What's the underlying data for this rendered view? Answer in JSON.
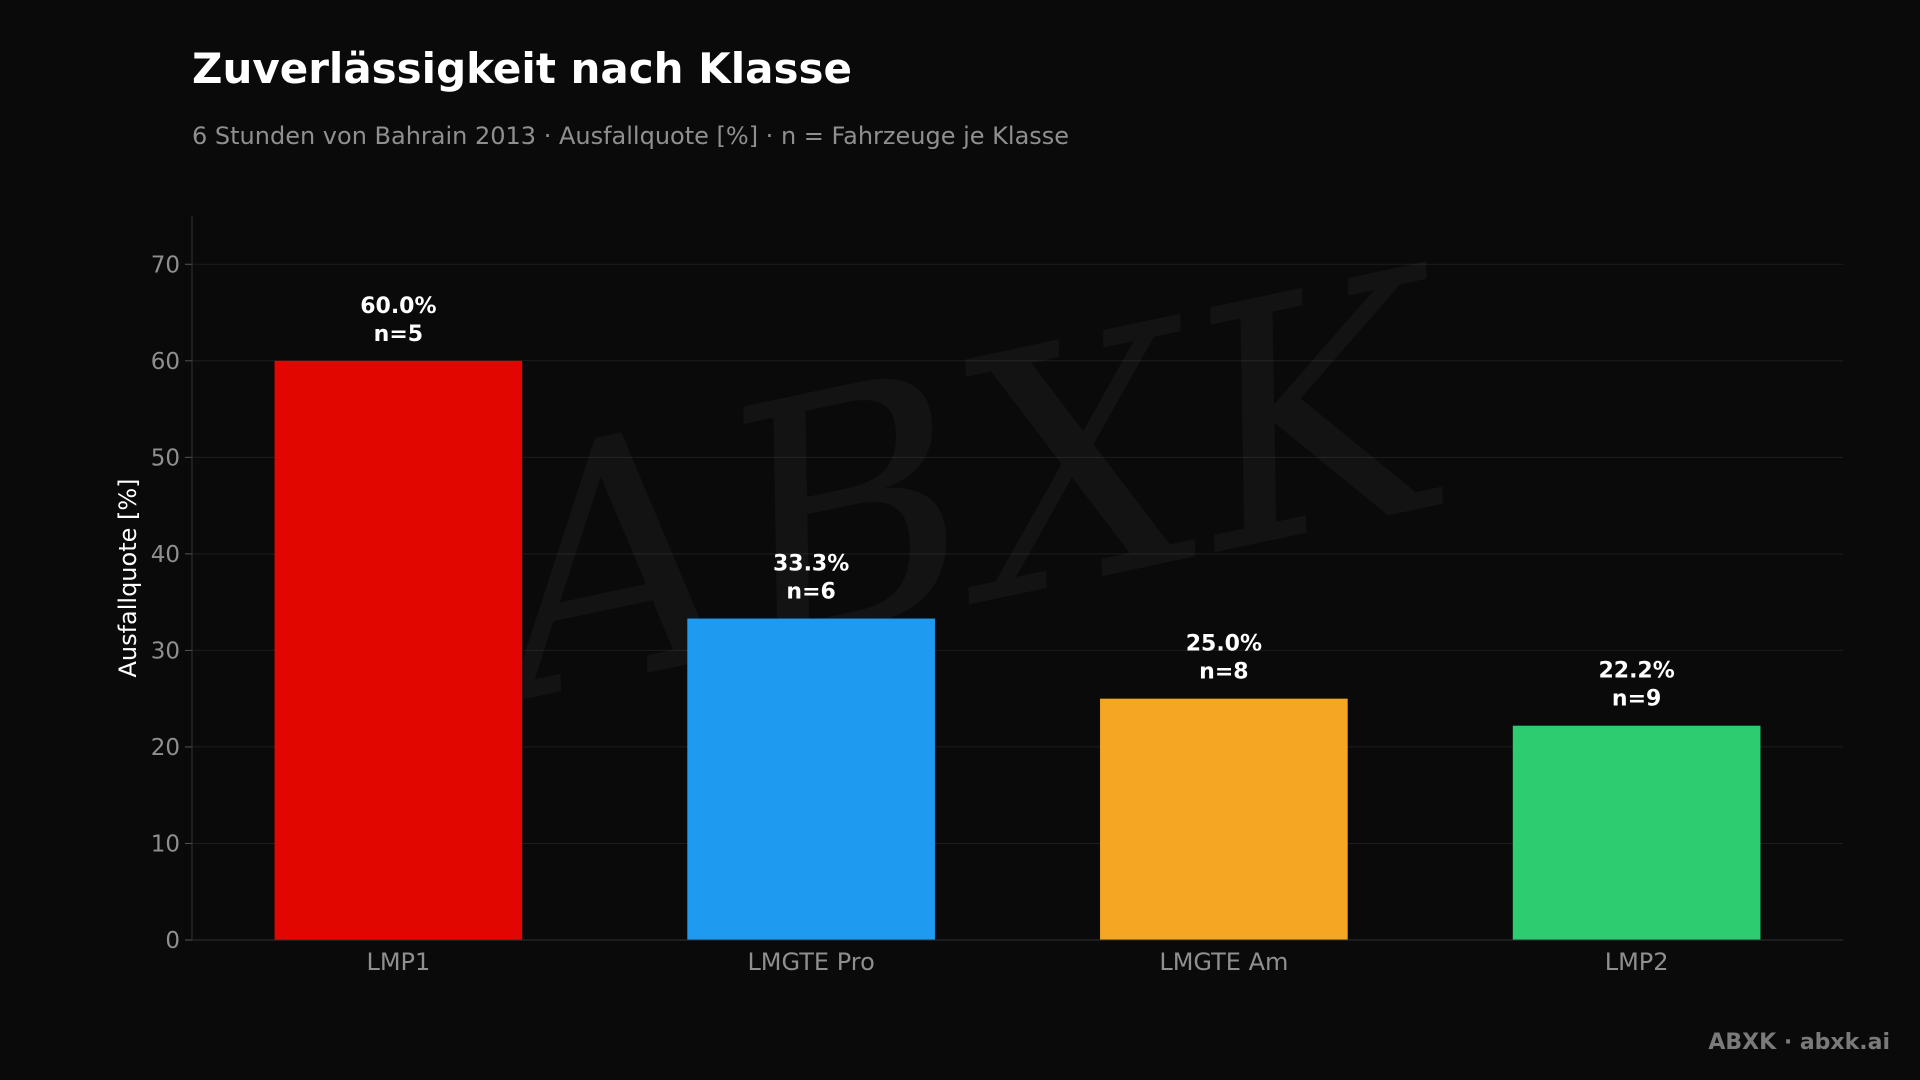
{
  "watermark": "ABXK",
  "footer": "ABXK · abxk.ai",
  "chart_data": {
    "type": "bar",
    "title": "Zuverlässigkeit nach Klasse",
    "subtitle": "6 Stunden von Bahrain 2013 · Ausfallquote [%] · n = Fahrzeuge je Klasse",
    "xlabel": "",
    "ylabel": "Ausfallquote [%]",
    "ylim": [
      0,
      75
    ],
    "yticks": [
      0,
      10,
      20,
      30,
      40,
      50,
      60,
      70
    ],
    "grid": true,
    "categories": [
      "LMP1",
      "LMGTE Pro",
      "LMGTE Am",
      "LMP2"
    ],
    "values": [
      60.0,
      33.3,
      25.0,
      22.2
    ],
    "value_labels": [
      "60.0%",
      "33.3%",
      "25.0%",
      "22.2%"
    ],
    "n_labels": [
      "n=5",
      "n=6",
      "n=8",
      "n=9"
    ],
    "colors": [
      "#e10600",
      "#1e9bf0",
      "#f5a623",
      "#2ecc71"
    ]
  }
}
